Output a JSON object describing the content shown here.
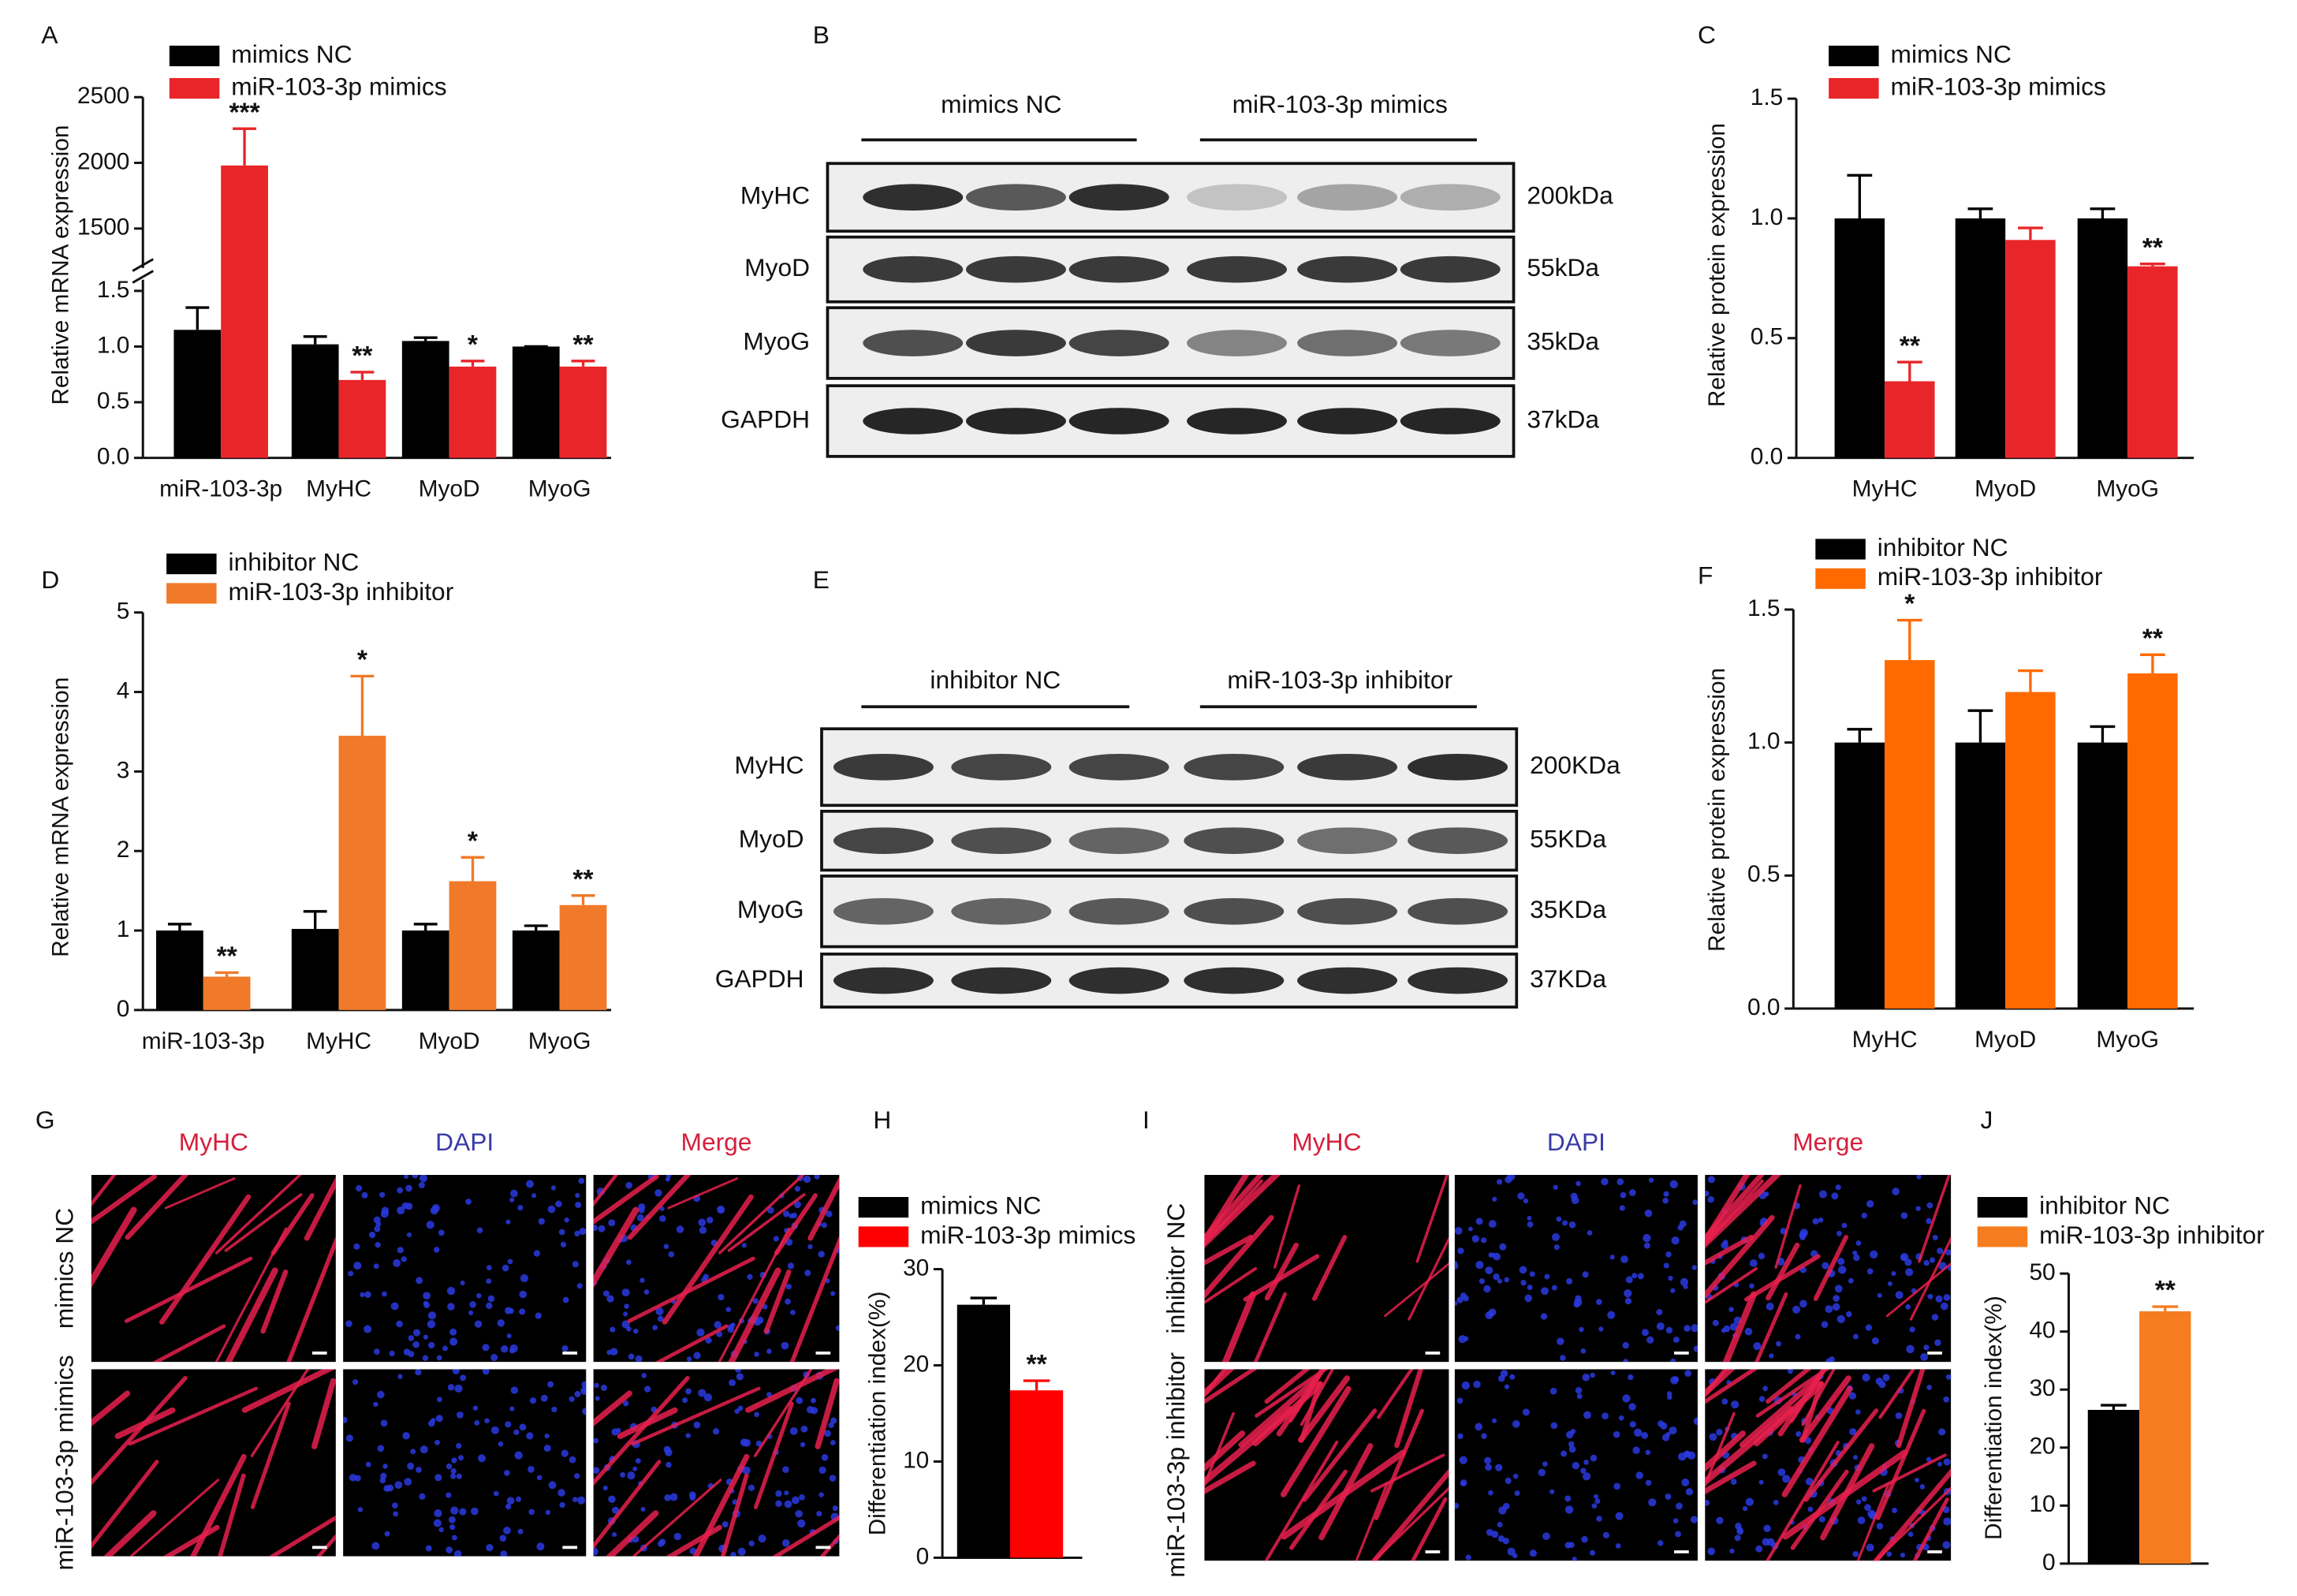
{
  "chart_data": [
    {
      "panel": "A",
      "type": "bar",
      "y_label": "Relative mRNA expression",
      "categories": [
        "miR-103-3p",
        "MyHC",
        "MyoD",
        "MyoG"
      ],
      "series": [
        {
          "name": "mimics NC",
          "color": "#000000",
          "values": [
            1.15,
            1.02,
            1.05,
            1.0
          ],
          "errors": [
            0.2,
            0.07,
            0.03,
            0.0
          ],
          "annotations": [
            null,
            null,
            null,
            null
          ]
        },
        {
          "name": "miR-103-3p mimics",
          "color": "#e8262a",
          "values": [
            1980,
            0.7,
            0.82,
            0.82
          ],
          "errors": [
            280,
            0.07,
            0.05,
            0.05
          ],
          "annotations": [
            "***",
            "**",
            "*",
            "**"
          ]
        }
      ],
      "ylim": [
        0,
        1.6
      ],
      "yticks": [
        {
          "value": 0,
          "label": "0.0"
        },
        {
          "value": 0.5,
          "label": "0.5"
        },
        {
          "value": 1,
          "label": "1.0"
        },
        {
          "value": 1.5,
          "label": "1.5"
        }
      ],
      "ylim_upper": [
        1200,
        2500
      ],
      "yticks_upper": [
        1500,
        2000,
        2500
      ],
      "axis_break": true
    },
    {
      "panel": "C",
      "type": "bar",
      "y_label": "Relative protein expression",
      "categories": [
        "MyHC",
        "MyoD",
        "MyoG"
      ],
      "series": [
        {
          "name": "mimics NC",
          "color": "#000000",
          "values": [
            1.0,
            1.0,
            1.0
          ],
          "errors": [
            0.18,
            0.04,
            0.04
          ],
          "annotations": [
            null,
            null,
            null
          ]
        },
        {
          "name": "miR-103-3p mimics",
          "color": "#e8262a",
          "values": [
            0.32,
            0.91,
            0.8
          ],
          "errors": [
            0.08,
            0.05,
            0.01
          ],
          "annotations": [
            "**",
            null,
            "**"
          ]
        }
      ],
      "ylim": [
        0,
        1.5
      ],
      "yticks": [
        {
          "value": 0,
          "label": "0.0"
        },
        {
          "value": 0.5,
          "label": "0.5"
        },
        {
          "value": 1,
          "label": "1.0"
        },
        {
          "value": 1.5,
          "label": "1.5"
        }
      ]
    },
    {
      "panel": "D",
      "type": "bar",
      "y_label": "Relative mRNA expression",
      "categories": [
        "miR-103-3p",
        "MyHC",
        "MyoD",
        "MyoG"
      ],
      "series": [
        {
          "name": "inhibitor NC",
          "color": "#000000",
          "values": [
            1.0,
            1.02,
            1.0,
            1.0
          ],
          "errors": [
            0.08,
            0.22,
            0.08,
            0.06
          ],
          "annotations": [
            null,
            null,
            null,
            null
          ]
        },
        {
          "name": "miR-103-3p inhibitor",
          "color": "#f07a2a",
          "values": [
            0.42,
            3.45,
            1.62,
            1.32
          ],
          "errors": [
            0.05,
            0.75,
            0.3,
            0.12
          ],
          "annotations": [
            "**",
            "*",
            "*",
            "**"
          ]
        }
      ],
      "ylim": [
        0,
        5
      ],
      "yticks": [
        0,
        1,
        2,
        3,
        4,
        5
      ]
    },
    {
      "panel": "F",
      "type": "bar",
      "y_label": "Relative protein expression",
      "categories": [
        "MyHC",
        "MyoD",
        "MyoG"
      ],
      "series": [
        {
          "name": "inhibitor NC",
          "color": "#000000",
          "values": [
            1.0,
            1.0,
            1.0
          ],
          "errors": [
            0.05,
            0.12,
            0.06
          ],
          "annotations": [
            null,
            null,
            null
          ]
        },
        {
          "name": "miR-103-3p inhibitor",
          "color": "#ff6a00",
          "values": [
            1.31,
            1.19,
            1.26
          ],
          "errors": [
            0.15,
            0.08,
            0.07
          ],
          "annotations": [
            "*",
            null,
            "**"
          ]
        }
      ],
      "ylim": [
        0,
        1.5
      ],
      "yticks": [
        {
          "value": 0,
          "label": "0.0"
        },
        {
          "value": 0.5,
          "label": "0.5"
        },
        {
          "value": 1,
          "label": "1.0"
        },
        {
          "value": 1.5,
          "label": "1.5"
        }
      ]
    },
    {
      "panel": "H",
      "type": "bar",
      "y_label": "Differentiation index(%)",
      "categories": [
        null
      ],
      "series": [
        {
          "name": "mimics NC",
          "color": "#000000",
          "values": [
            26.3
          ],
          "errors": [
            0.7
          ],
          "annotations": [
            null
          ]
        },
        {
          "name": "miR-103-3p mimics",
          "color": "#ff0000",
          "values": [
            17.4
          ],
          "errors": [
            1.0
          ],
          "annotations": [
            "**"
          ]
        }
      ],
      "ylim": [
        0,
        30
      ],
      "yticks": [
        0,
        10,
        20,
        30
      ]
    },
    {
      "panel": "J",
      "type": "bar",
      "y_label": "Differentiation index(%)",
      "categories": [
        null
      ],
      "series": [
        {
          "name": "inhibitor NC",
          "color": "#000000",
          "values": [
            26.5
          ],
          "errors": [
            0.8
          ],
          "annotations": [
            null
          ]
        },
        {
          "name": "miR-103-3p inhibitor",
          "color": "#f57d20",
          "values": [
            43.5
          ],
          "errors": [
            0.8
          ],
          "annotations": [
            "**"
          ]
        }
      ],
      "ylim": [
        0,
        50
      ],
      "yticks": [
        0,
        10,
        20,
        30,
        40,
        50
      ]
    }
  ],
  "blots": [
    {
      "panel": "B",
      "groups": [
        "mimics NC",
        "miR-103-3p mimics"
      ],
      "rows": [
        {
          "name": "MyHC",
          "size": "200kDa"
        },
        {
          "name": "MyoD",
          "size": "55kDa"
        },
        {
          "name": "MyoG",
          "size": "35kDa"
        },
        {
          "name": "GAPDH",
          "size": "37kDa"
        }
      ]
    },
    {
      "panel": "E",
      "groups": [
        "inhibitor NC",
        "miR-103-3p inhibitor"
      ],
      "rows": [
        {
          "name": "MyHC",
          "size": "200KDa"
        },
        {
          "name": "MyoD",
          "size": "55KDa"
        },
        {
          "name": "MyoG",
          "size": "35KDa"
        },
        {
          "name": "GAPDH",
          "size": "37KDa"
        }
      ]
    }
  ],
  "images": [
    {
      "panel": "G",
      "columns": [
        "MyHC",
        "DAPI",
        "Merge"
      ],
      "column_colors": [
        "#d4203c",
        "#3a3aa8",
        "#d4203c"
      ],
      "rows": [
        "mimics NC",
        "miR-103-3p mimics"
      ]
    },
    {
      "panel": "I",
      "columns": [
        "MyHC",
        "DAPI",
        "Merge"
      ],
      "column_colors": [
        "#d4203c",
        "#3a3aa8",
        "#d4203c"
      ],
      "rows": [
        "inhibitor NC",
        "miR-103-3p inhibitor"
      ]
    }
  ]
}
